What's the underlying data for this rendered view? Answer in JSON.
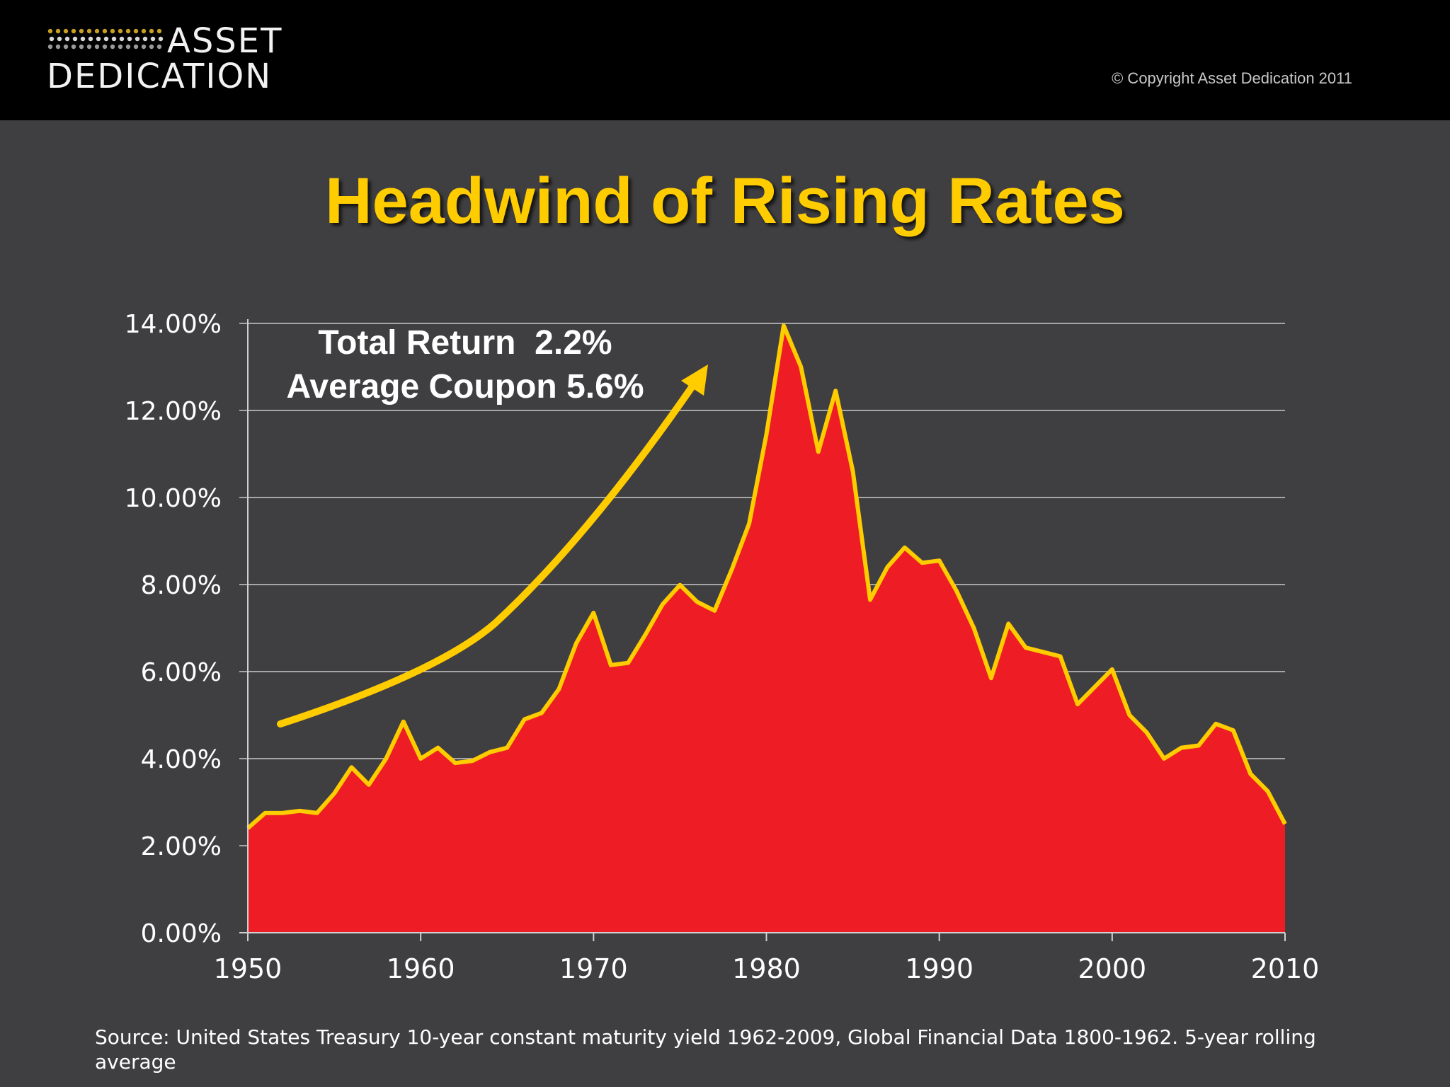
{
  "header": {
    "logo_line1": "ASSET",
    "logo_line2": "DEDICATION",
    "copyright": "© Copyright Asset Dedication 2011",
    "logo_dots_color": "#c8a024",
    "background": "#000000"
  },
  "title": "Headwind of Rising Rates",
  "source": "Source: United States Treasury 10-year constant maturity yield 1962-2009, Global Financial Data 1800-1962.  5-year rolling average",
  "chart_data": {
    "type": "area",
    "title": "Headwind of Rising Rates",
    "xlabel": "",
    "ylabel": "",
    "xlim": [
      1950,
      2010
    ],
    "ylim": [
      0,
      14
    ],
    "grid": true,
    "x_ticks": [
      "1950",
      "1960",
      "1970",
      "1980",
      "1990",
      "2000",
      "2010"
    ],
    "y_ticks": [
      "0.00%",
      "2.00%",
      "4.00%",
      "6.00%",
      "8.00%",
      "10.00%",
      "12.00%",
      "14.00%"
    ],
    "annotations": [
      "Total Return  2.2%",
      "Average Coupon 5.6%"
    ],
    "fill_color": "#ee1c25",
    "line_color": "#ffcc00",
    "arrow_color": "#ffcc00",
    "series": [
      {
        "x": [
          1950,
          1951,
          1952,
          1953,
          1954,
          1955,
          1956,
          1957,
          1958,
          1959,
          1960,
          1961,
          1962,
          1963,
          1964,
          1965,
          1966,
          1967,
          1968,
          1969,
          1970,
          1971,
          1972,
          1973,
          1974,
          1975,
          1976,
          1977,
          1978,
          1979,
          1980,
          1981,
          1982,
          1983,
          1984,
          1985,
          1986,
          1987,
          1988,
          1989,
          1990,
          1991,
          1992,
          1993,
          1994,
          1995,
          1996,
          1997,
          1998,
          1999,
          2000,
          2001,
          2002,
          2003,
          2004,
          2005,
          2006,
          2007,
          2008,
          2009,
          2010
        ],
        "values": [
          2.4,
          2.75,
          2.75,
          2.8,
          2.75,
          3.2,
          3.8,
          3.4,
          4.0,
          4.85,
          4.0,
          4.25,
          3.9,
          3.95,
          4.15,
          4.25,
          4.9,
          5.05,
          5.6,
          6.65,
          7.35,
          6.15,
          6.2,
          6.85,
          7.55,
          7.99,
          7.6,
          7.4,
          8.35,
          9.4,
          11.45,
          13.95,
          13.0,
          11.05,
          12.45,
          10.6,
          7.65,
          8.4,
          8.85,
          8.5,
          8.55,
          7.85,
          7.0,
          5.85,
          7.1,
          6.55,
          6.45,
          6.35,
          5.25,
          5.65,
          6.05,
          5.0,
          4.6,
          4.0,
          4.25,
          4.3,
          4.8,
          4.65,
          3.65,
          3.25,
          2.5
        ]
      }
    ]
  }
}
